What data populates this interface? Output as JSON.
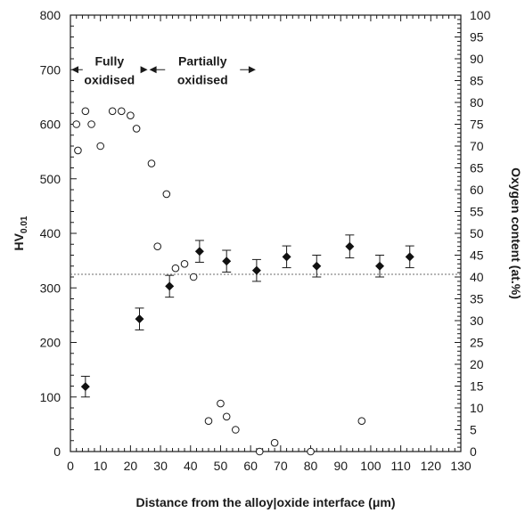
{
  "chart_data": {
    "type": "scatter",
    "xlabel": "Distance from the alloy|oxide interface (μm)",
    "ylabel_left_main": "HV",
    "ylabel_left_sub": "0.01",
    "ylabel_right": "Oxygen content (at.%)",
    "xlim": [
      0,
      130
    ],
    "ylim_left": [
      0,
      800
    ],
    "ylim_right": [
      0,
      100
    ],
    "x_ticks": [
      0,
      10,
      20,
      30,
      40,
      50,
      60,
      70,
      80,
      90,
      100,
      110,
      120,
      130
    ],
    "y_left_ticks": [
      0,
      100,
      200,
      300,
      400,
      500,
      600,
      700,
      800
    ],
    "y_right_ticks": [
      0,
      5,
      10,
      15,
      20,
      25,
      30,
      35,
      40,
      45,
      50,
      55,
      60,
      65,
      70,
      75,
      80,
      85,
      90,
      95,
      100
    ],
    "reference_line": {
      "axis": "left",
      "y": 325,
      "style": "dotted"
    },
    "regions": [
      {
        "label_line1": "Fully",
        "label_line2": "oxidised",
        "x_start": 0,
        "x_end": 26
      },
      {
        "label_line1": "Partially",
        "label_line2": "oxidised",
        "x_start": 26,
        "x_end": 62
      }
    ],
    "series": [
      {
        "marker": "filled-diamond",
        "axis": "left",
        "x": [
          5,
          23,
          33,
          43,
          52,
          62,
          72,
          82,
          93,
          103,
          113
        ],
        "y": [
          119,
          243,
          303,
          367,
          349,
          332,
          357,
          340,
          376,
          340,
          357
        ],
        "err": [
          19,
          20,
          20,
          20,
          20,
          20,
          20,
          20,
          21,
          20,
          20
        ]
      },
      {
        "marker": "open-circle",
        "axis": "right",
        "x": [
          2,
          2.5,
          5,
          7,
          10,
          14,
          17,
          20,
          22,
          27,
          29,
          32,
          35,
          38,
          41,
          46,
          50,
          52,
          55,
          63,
          68,
          80,
          97
        ],
        "y": [
          75,
          69,
          78,
          75,
          70,
          78,
          78,
          77,
          74,
          66,
          47,
          59,
          42,
          43,
          40,
          7,
          11,
          8,
          5,
          0,
          2,
          0,
          7
        ]
      }
    ]
  }
}
